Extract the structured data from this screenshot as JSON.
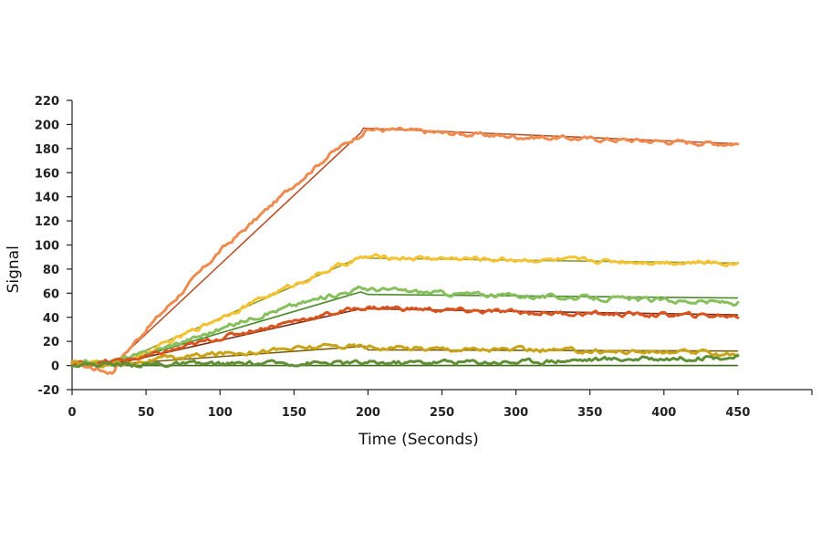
{
  "chart_data": {
    "type": "line",
    "title": "",
    "xlabel": "Time  (Seconds)",
    "ylabel": "Signal",
    "xlim": [
      0,
      500
    ],
    "ylim": [
      -20,
      220
    ],
    "x_ticks": [
      0,
      50,
      100,
      150,
      200,
      250,
      300,
      350,
      400,
      450
    ],
    "y_ticks": [
      -20,
      0,
      20,
      40,
      60,
      80,
      100,
      120,
      140,
      160,
      180,
      200,
      220
    ],
    "grid": false,
    "legend": "none",
    "series": [
      {
        "color": "#ef8b4f",
        "points": [
          [
            0,
            2
          ],
          [
            28,
            -6
          ],
          [
            30,
            2
          ],
          [
            50,
            30
          ],
          [
            75,
            62
          ],
          [
            100,
            95
          ],
          [
            125,
            122
          ],
          [
            150,
            150
          ],
          [
            175,
            176
          ],
          [
            195,
            192
          ],
          [
            200,
            196
          ],
          [
            225,
            195
          ],
          [
            250,
            193
          ],
          [
            300,
            190
          ],
          [
            350,
            188
          ],
          [
            400,
            186
          ],
          [
            450,
            184
          ]
        ]
      },
      {
        "color": "#f5c332",
        "points": [
          [
            0,
            1
          ],
          [
            25,
            2
          ],
          [
            50,
            10
          ],
          [
            75,
            25
          ],
          [
            100,
            40
          ],
          [
            125,
            54
          ],
          [
            150,
            67
          ],
          [
            175,
            80
          ],
          [
            195,
            89
          ],
          [
            200,
            90
          ],
          [
            250,
            89
          ],
          [
            300,
            88
          ],
          [
            350,
            87
          ],
          [
            400,
            86
          ],
          [
            450,
            85
          ]
        ]
      },
      {
        "color": "#86bf5b",
        "points": [
          [
            0,
            1
          ],
          [
            25,
            3
          ],
          [
            50,
            10
          ],
          [
            75,
            20
          ],
          [
            100,
            30
          ],
          [
            125,
            41
          ],
          [
            150,
            50
          ],
          [
            175,
            58
          ],
          [
            195,
            64
          ],
          [
            210,
            63
          ],
          [
            250,
            60
          ],
          [
            300,
            58
          ],
          [
            350,
            56
          ],
          [
            400,
            54
          ],
          [
            450,
            52
          ]
        ]
      },
      {
        "color": "#d9541f",
        "points": [
          [
            0,
            1
          ],
          [
            25,
            3
          ],
          [
            50,
            7
          ],
          [
            75,
            15
          ],
          [
            100,
            23
          ],
          [
            125,
            30
          ],
          [
            150,
            37
          ],
          [
            175,
            43
          ],
          [
            195,
            48
          ],
          [
            210,
            48
          ],
          [
            250,
            46
          ],
          [
            300,
            44
          ],
          [
            350,
            43
          ],
          [
            400,
            42
          ],
          [
            450,
            41
          ]
        ]
      },
      {
        "color": "#c9a318",
        "points": [
          [
            0,
            1
          ],
          [
            25,
            1
          ],
          [
            50,
            4
          ],
          [
            75,
            7
          ],
          [
            100,
            10
          ],
          [
            125,
            12
          ],
          [
            150,
            14
          ],
          [
            175,
            16
          ],
          [
            195,
            16
          ],
          [
            210,
            15
          ],
          [
            250,
            14
          ],
          [
            300,
            13
          ],
          [
            350,
            12
          ],
          [
            400,
            11
          ],
          [
            450,
            10
          ]
        ]
      },
      {
        "color": "#5f8f35",
        "points": [
          [
            0,
            1
          ],
          [
            50,
            1
          ],
          [
            100,
            1
          ],
          [
            150,
            2
          ],
          [
            200,
            2
          ],
          [
            250,
            3
          ],
          [
            300,
            3
          ],
          [
            350,
            5
          ],
          [
            400,
            6
          ],
          [
            450,
            7
          ]
        ]
      }
    ],
    "fits": [
      {
        "color": "#b8542c",
        "points": [
          [
            0,
            1
          ],
          [
            28,
            1
          ],
          [
            195,
            193
          ],
          [
            197,
            197
          ],
          [
            450,
            184
          ]
        ]
      },
      {
        "color": "#8a9d2a",
        "points": [
          [
            0,
            1
          ],
          [
            28,
            1
          ],
          [
            195,
            90
          ],
          [
            200,
            89
          ],
          [
            450,
            85
          ]
        ]
      },
      {
        "color": "#4b8c2a",
        "points": [
          [
            0,
            1
          ],
          [
            28,
            1
          ],
          [
            195,
            61
          ],
          [
            200,
            59
          ],
          [
            450,
            56
          ]
        ]
      },
      {
        "color": "#7a2a10",
        "points": [
          [
            0,
            1
          ],
          [
            28,
            1
          ],
          [
            195,
            47
          ],
          [
            200,
            47
          ],
          [
            450,
            42
          ]
        ]
      },
      {
        "color": "#7a5f0a",
        "points": [
          [
            0,
            1
          ],
          [
            28,
            1
          ],
          [
            198,
            16
          ],
          [
            200,
            13
          ],
          [
            450,
            12
          ]
        ]
      },
      {
        "color": "#3e6a1c",
        "points": [
          [
            0,
            0
          ],
          [
            450,
            0
          ]
        ]
      }
    ]
  }
}
